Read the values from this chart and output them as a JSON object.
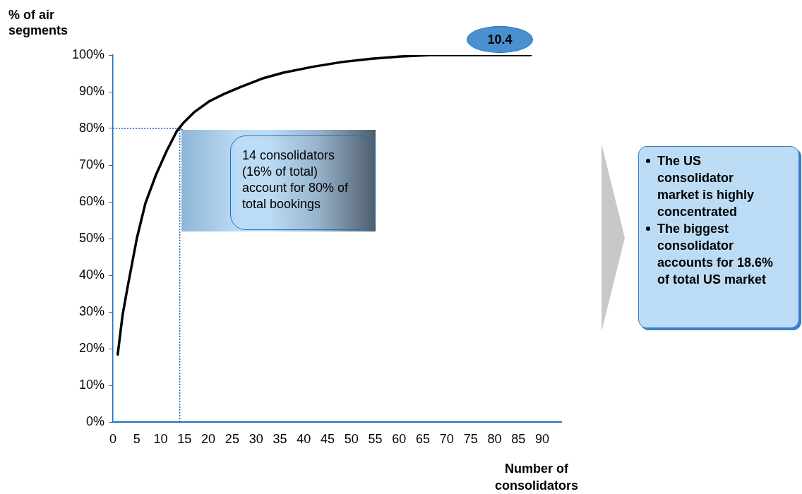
{
  "chart_data": {
    "type": "line",
    "xlabel": "Number of consolidators",
    "ylabel": "% of air segments",
    "x": [
      1,
      2,
      3,
      5,
      6.8,
      9,
      11.2,
      13.4,
      14.9,
      17.1,
      20.2,
      23.3,
      27,
      31.3,
      35.7,
      41.9,
      48,
      54.2,
      60.4,
      66.6,
      87.6
    ],
    "series": [
      {
        "color": "#000000",
        "values": [
          18.4,
          29,
          36.3,
          50,
          59.6,
          67.3,
          73.7,
          79.3,
          81.7,
          84.5,
          87.4,
          89.4,
          91.4,
          93.6,
          95.2,
          96.8,
          98.1,
          99,
          99.6,
          100,
          100
        ]
      }
    ],
    "xlim": [
      0,
      94
    ],
    "xticks": [
      0,
      5,
      10,
      15,
      20,
      25,
      30,
      35,
      40,
      45,
      50,
      55,
      60,
      65,
      70,
      75,
      80,
      85,
      90
    ],
    "ylim": [
      0,
      100
    ],
    "yticks": [
      {
        "value": 0,
        "label": "0%"
      },
      {
        "value": 10,
        "label": "10%"
      },
      {
        "value": 20,
        "label": "20%"
      },
      {
        "value": 30,
        "label": "30%"
      },
      {
        "value": 40,
        "label": "40%"
      },
      {
        "value": 50,
        "label": "50%"
      },
      {
        "value": 60,
        "label": "60%"
      },
      {
        "value": 70,
        "label": "70%"
      },
      {
        "value": 80,
        "label": "80%"
      },
      {
        "value": 90,
        "label": "90%"
      },
      {
        "value": 100,
        "label": "100%"
      }
    ],
    "marker": "none",
    "line_style": "solid",
    "legend": false,
    "ref_lines": [
      {
        "axis": "x",
        "value": 14,
        "line_style": "dotted",
        "color": "#1f5fb0"
      },
      {
        "axis": "y",
        "value": 80,
        "line_style": "dotted",
        "color": "#1f5fb0"
      }
    ],
    "annotations": [
      {
        "text": "14 consolidators (16% of total) account for 80% of total bookings",
        "x": 14,
        "y": 80
      },
      "10.4",
      "The US consolidator market is highly concentrated",
      "The biggest consolidator accounts for 18.6% of total US market"
    ]
  }
}
